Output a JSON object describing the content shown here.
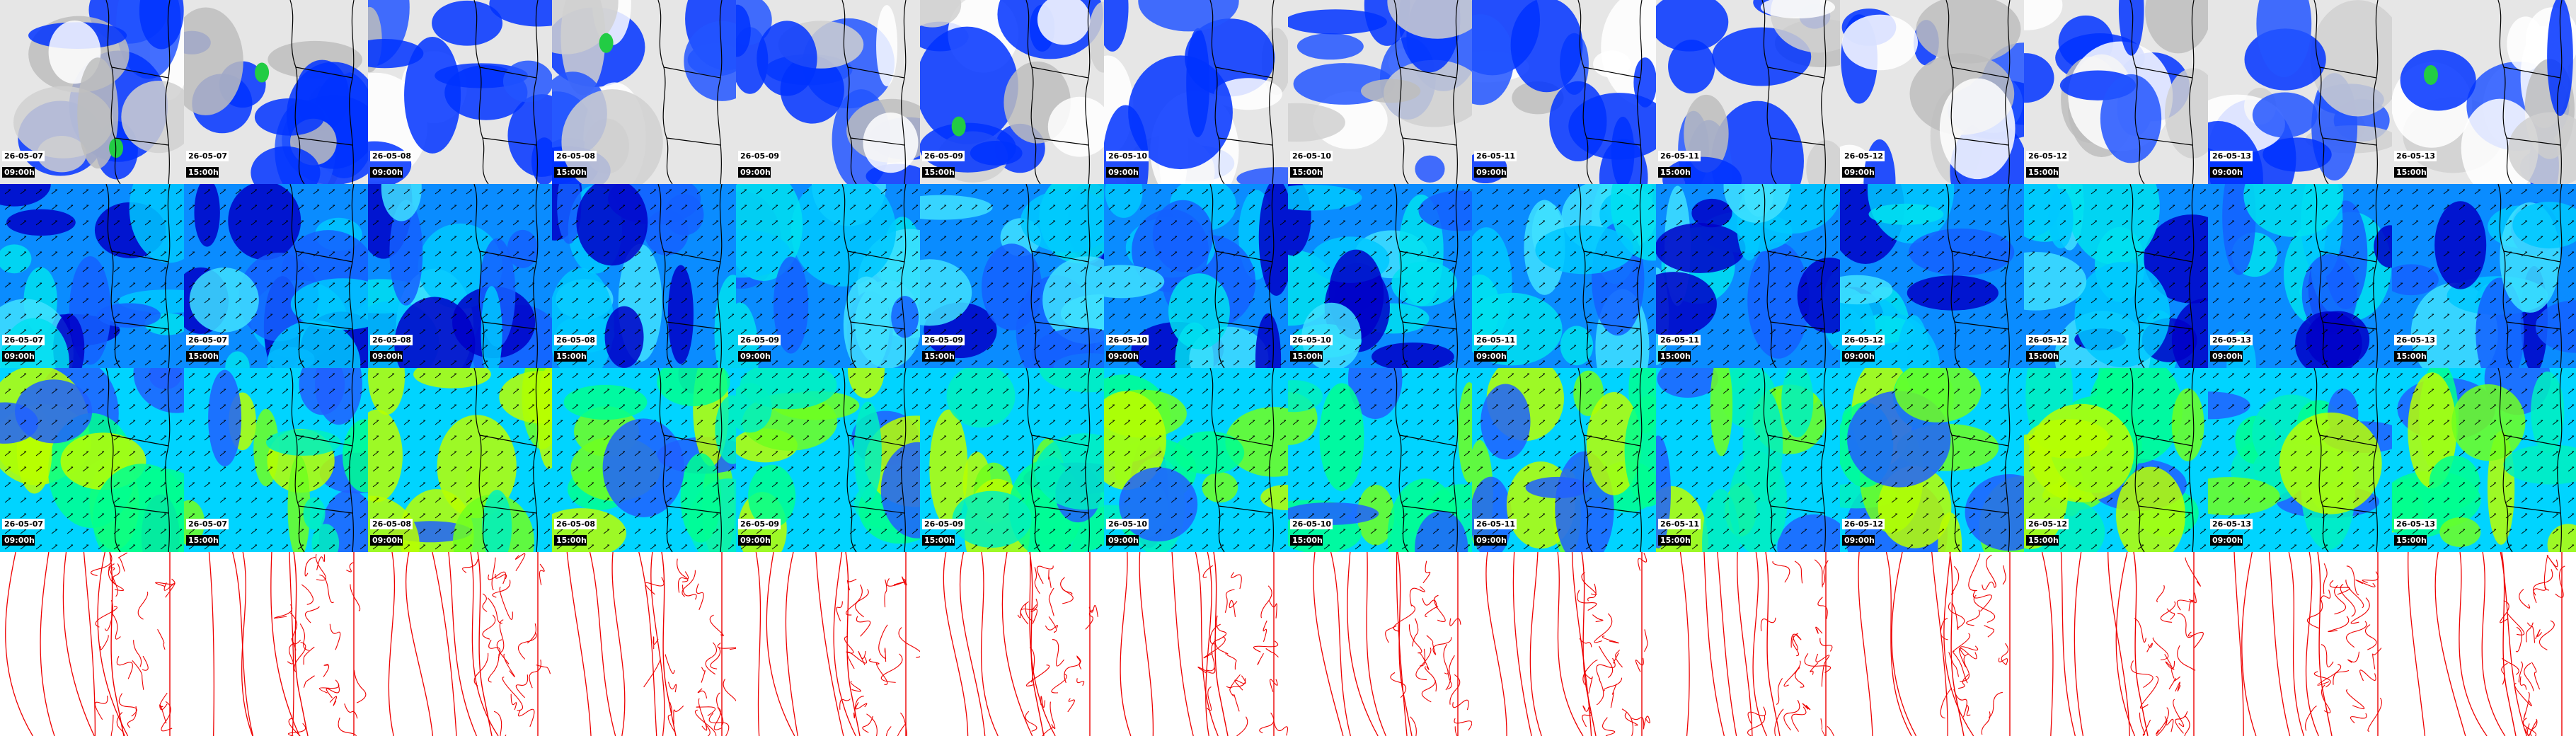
{
  "columns": [
    {
      "date": "26-05-07",
      "time": "09:00h"
    },
    {
      "date": "26-05-07",
      "time": "15:00h"
    },
    {
      "date": "26-05-08",
      "time": "09:00h"
    },
    {
      "date": "26-05-08",
      "time": "15:00h"
    },
    {
      "date": "26-05-09",
      "time": "09:00h"
    },
    {
      "date": "26-05-09",
      "time": "15:00h"
    },
    {
      "date": "26-05-10",
      "time": "09:00h"
    },
    {
      "date": "26-05-10",
      "time": "15:00h"
    },
    {
      "date": "26-05-11",
      "time": "09:00h"
    },
    {
      "date": "26-05-11",
      "time": "15:00h"
    },
    {
      "date": "26-05-12",
      "time": "09:00h"
    },
    {
      "date": "26-05-12",
      "time": "15:00h"
    },
    {
      "date": "26-05-13",
      "time": "09:00h"
    },
    {
      "date": "26-05-13",
      "time": "15:00h"
    }
  ]
}
